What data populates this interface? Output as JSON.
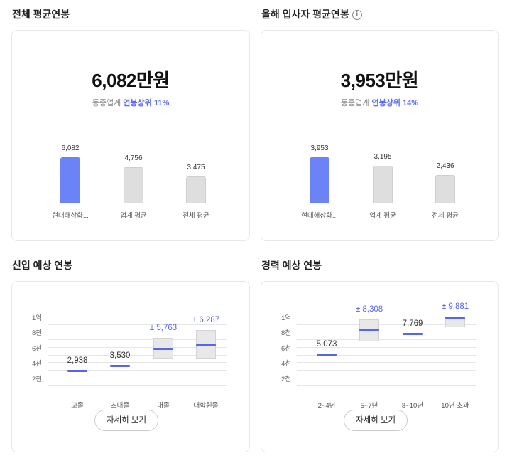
{
  "avg_salary": {
    "title": "전체 평균연봉",
    "value": "6,082만원",
    "rank_prefix": "동종업계 ",
    "rank_highlight": "연봉상위 11%",
    "chart_data": {
      "type": "bar",
      "categories": [
        "현대해상화...",
        "업계 평균",
        "전체 평균"
      ],
      "values": [
        6082,
        4756,
        3475
      ],
      "value_labels": [
        "6,082",
        "4,756",
        "3,475"
      ],
      "ylim": [
        0,
        7000
      ]
    }
  },
  "new_hire_salary": {
    "title": "올해 입사자 평균연봉",
    "info_icon": "info-icon",
    "value": "3,953만원",
    "rank_prefix": "동종업계 ",
    "rank_highlight": "연봉상위 14%",
    "chart_data": {
      "type": "bar",
      "categories": [
        "현대해상화...",
        "업계 평균",
        "전체 평균"
      ],
      "values": [
        3953,
        3195,
        2436
      ],
      "value_labels": [
        "3,953",
        "3,195",
        "2,436"
      ],
      "ylim": [
        0,
        4500
      ]
    }
  },
  "entry_expected": {
    "title": "신입 예상 연봉",
    "detail_label": "자세히 보기",
    "chart_data": {
      "type": "range",
      "y_ticks": [
        "1억",
        "8천",
        "6천",
        "4천",
        "2천"
      ],
      "categories": [
        "고졸",
        "초대졸",
        "대졸",
        "대학원졸"
      ],
      "values": [
        2938,
        3530,
        5763,
        6287
      ],
      "labels": [
        "2,938",
        "3,530",
        "± 5,763",
        "± 6,287"
      ],
      "ranges": [
        null,
        null,
        [
          4500,
          7200
        ],
        [
          4500,
          8200
        ]
      ]
    }
  },
  "career_expected": {
    "title": "경력 예상 연봉",
    "detail_label": "자세히 보기",
    "chart_data": {
      "type": "range",
      "y_ticks": [
        "1억",
        "8천",
        "6천",
        "4천",
        "2천"
      ],
      "categories": [
        "2~4년",
        "5~7년",
        "8~10년",
        "10년 초과"
      ],
      "values": [
        5073,
        8308,
        7769,
        9881
      ],
      "labels": [
        "5,073",
        "± 8,308",
        "7,769",
        "± 9,881"
      ],
      "ranges": [
        null,
        [
          6700,
          9600
        ],
        null,
        [
          8600,
          10000
        ]
      ]
    }
  },
  "colors": {
    "accent": "#6c83f7",
    "mark": "#5566e8",
    "bar_other": "#dedede"
  }
}
